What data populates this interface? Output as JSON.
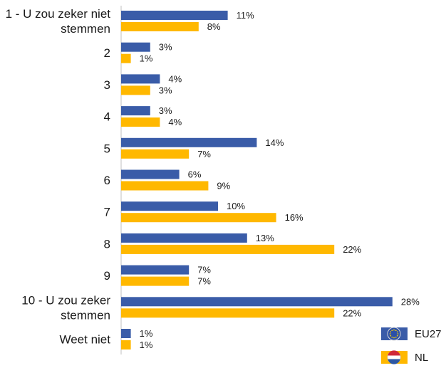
{
  "chart_data": {
    "type": "bar",
    "orientation": "horizontal",
    "categories": [
      [
        "1 - U zou zeker niet",
        "stemmen"
      ],
      [
        "2"
      ],
      [
        "3"
      ],
      [
        "4"
      ],
      [
        "5"
      ],
      [
        "6"
      ],
      [
        "7"
      ],
      [
        "8"
      ],
      [
        "9"
      ],
      [
        "10 - U zou zeker",
        "stemmen"
      ],
      [
        "Weet niet"
      ]
    ],
    "series": [
      {
        "name": "EU27",
        "color": "#3A5CA8",
        "icon": "eu-flag-icon",
        "values": [
          11,
          3,
          4,
          3,
          14,
          6,
          10,
          13,
          7,
          28,
          1
        ]
      },
      {
        "name": "NL",
        "color": "#FFB800",
        "icon": "nl-flag-icon",
        "values": [
          8,
          1,
          3,
          4,
          7,
          9,
          16,
          22,
          7,
          22,
          1
        ]
      }
    ],
    "value_suffix": "%",
    "xlim": [
      0,
      30
    ],
    "grid": false,
    "legend_position": "bottom-right"
  }
}
